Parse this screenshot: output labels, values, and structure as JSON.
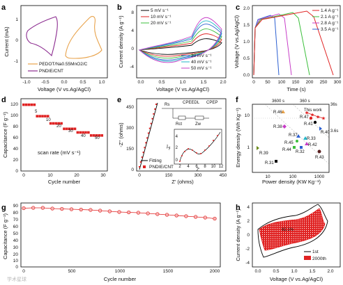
{
  "panels": {
    "a": {
      "label": "a",
      "ylabel": "Current (mA)",
      "xlabel": "Voltage (V vs.Ag/AgCl)",
      "xticks": [
        "-1.0",
        "-0.5",
        "0.0",
        "0.5",
        "1.0"
      ],
      "yticks": [
        "1",
        "0",
        "-1"
      ],
      "legend": [
        "PEDOT/Na0.55MnO2/C",
        "PNDIE/CNT"
      ]
    },
    "b": {
      "label": "b",
      "ylabel": "Current density (A g⁻¹)",
      "xlabel": "Voltage (V vs.Ag/AgCl)",
      "xticks": [
        "0.0",
        "0.5",
        "1.0",
        "1.5",
        "2.0"
      ],
      "yticks": [
        "8",
        "4",
        "0",
        "-4"
      ],
      "legend_top": [
        "5 mV s⁻¹",
        "10 mV s⁻¹",
        "20 mV s⁻¹"
      ],
      "legend_bottom": [
        "30 mV s⁻¹",
        "40 mV s⁻¹",
        "50 mV s⁻¹"
      ]
    },
    "c": {
      "label": "c",
      "ylabel": "Voltage (V vs.Ag/AgCl)",
      "xlabel": "Time (s)",
      "xticks": [
        "0",
        "50",
        "100",
        "150",
        "200",
        "250",
        "300"
      ],
      "yticks": [
        "0.0",
        "0.5",
        "1.0",
        "1.5",
        "2.0"
      ],
      "legend": [
        "1.4 A g⁻¹",
        "2.1 A g⁻¹",
        "2.8 A g⁻¹",
        "3.5 A g⁻¹"
      ]
    },
    "d": {
      "label": "d",
      "ylabel": "Capacitance (F g⁻¹)",
      "xlabel": "Cycle number",
      "xticks": [
        "0",
        "10",
        "20",
        "30"
      ],
      "yticks": [
        "120",
        "100",
        "80",
        "60",
        "40",
        "20",
        "0"
      ],
      "rate_labels": [
        "5",
        "10",
        "20",
        "30",
        "40",
        "50"
      ],
      "scan_rate_text": "scan rate (mV s⁻¹)"
    },
    "e": {
      "label": "e",
      "ylabel": "-Z'' (ohms)",
      "xlabel": "Z' (ohms)",
      "xticks": [
        "0",
        "150",
        "300",
        "450"
      ],
      "yticks": [
        "450",
        "300",
        "150",
        "0"
      ],
      "inset_ylabel": "-Z''",
      "inset_xlabel": "Z'",
      "inset_xticks": [
        "2",
        "4",
        "6",
        "8",
        "10",
        "12"
      ],
      "inset_yticks": [
        "4",
        "2",
        "0"
      ],
      "circuit": [
        "Rs",
        "CPEEDL",
        "CPEP",
        "Rct",
        "Zw"
      ],
      "legend": [
        "Fitting",
        "PNDIE/CNT"
      ]
    },
    "f": {
      "label": "f",
      "ylabel": "Energy density (Wh Kg⁻¹)",
      "xlabel": "Power density (KW Kg⁻¹)",
      "xticks": [
        "10",
        "100",
        "1000"
      ],
      "yticks": [
        "10",
        "1"
      ],
      "time_labels": [
        "3600 s",
        "360 s",
        "36s",
        "3.6s"
      ],
      "this_work": "This work",
      "points": [
        "R.46",
        "R.47",
        "R.41",
        "R.40",
        "R.38",
        "R.37",
        "R.33",
        "R.45",
        "R.42",
        "R.44",
        "R.32",
        "R.39",
        "R.43",
        "R.31"
      ]
    },
    "g": {
      "label": "g",
      "ylabel": "Capacitance (F g⁻¹)",
      "xlabel": "Cycle number",
      "xticks": [
        "0",
        "500",
        "1000",
        "1500",
        "2000"
      ],
      "yticks": [
        "90",
        "80",
        "70",
        "60",
        "50",
        "40",
        "30",
        "20",
        "10",
        "0"
      ]
    },
    "h": {
      "label": "h",
      "ylabel": "Current density (A g⁻¹)",
      "xlabel": "Voltage (V vs.Ag/AgCl)",
      "xticks": [
        "0.0",
        "0.5",
        "1.0",
        "1.5",
        "2.0"
      ],
      "yticks": [
        "4",
        "2",
        "0",
        "-2",
        "-4"
      ],
      "annotation": "82.1%",
      "legend": [
        "1st",
        "2000th"
      ]
    }
  },
  "watermark": "学术星球",
  "colors": {
    "orange": "#e8a24a",
    "purple": "#8b2a8f",
    "red": "#e02222",
    "green": "#3bbf3b",
    "blue": "#2b5fd1",
    "black": "#000000"
  },
  "chart_data": [
    {
      "panel": "d",
      "type": "scatter",
      "xlabel": "Cycle number",
      "ylabel": "Capacitance (F g⁻¹)",
      "ylim": [
        0,
        120
      ],
      "xlim": [
        0,
        32
      ],
      "series": [
        {
          "x": [
            1,
            2,
            3,
            4,
            5
          ],
          "y": [
            110,
            110,
            110,
            110,
            110
          ]
        },
        {
          "x": [
            6,
            7,
            8,
            9,
            10
          ],
          "y": [
            91,
            91,
            91,
            91,
            91
          ]
        },
        {
          "x": [
            11,
            12,
            13,
            14,
            15
          ],
          "y": [
            79,
            79,
            79,
            79,
            79
          ]
        },
        {
          "x": [
            16,
            17,
            18,
            19,
            20
          ],
          "y": [
            70,
            70,
            70,
            70,
            70
          ]
        },
        {
          "x": [
            21,
            22,
            23,
            24,
            25
          ],
          "y": [
            64,
            64,
            64,
            64,
            64
          ]
        },
        {
          "x": [
            26,
            27,
            28,
            29,
            30
          ],
          "y": [
            59,
            59,
            59,
            59,
            59
          ]
        }
      ]
    },
    {
      "panel": "g",
      "type": "line",
      "xlabel": "Cycle number",
      "ylabel": "Capacitance (F g⁻¹)",
      "ylim": [
        0,
        90
      ],
      "xlim": [
        0,
        2000
      ],
      "series": [
        {
          "x": [
            0,
            100,
            200,
            300,
            400,
            500,
            600,
            700,
            800,
            900,
            1000,
            1100,
            1200,
            1300,
            1400,
            1500,
            1600,
            1700,
            1800,
            1900,
            2000
          ],
          "y": [
            84.5,
            85,
            85,
            84,
            83.5,
            83,
            82.5,
            82,
            81,
            80,
            79,
            78.5,
            78,
            77,
            76,
            75,
            74,
            73,
            72,
            71,
            69.5
          ]
        }
      ]
    },
    {
      "panel": "f",
      "type": "scatter",
      "xlabel": "Power density (KW Kg⁻¹)",
      "ylabel": "Energy density (Wh Kg⁻¹)",
      "series": [
        {
          "name": "This work",
          "x": [
            350,
            500,
            700,
            900
          ],
          "y": [
            9.0,
            8.2,
            7.3,
            6.4
          ]
        }
      ]
    }
  ]
}
